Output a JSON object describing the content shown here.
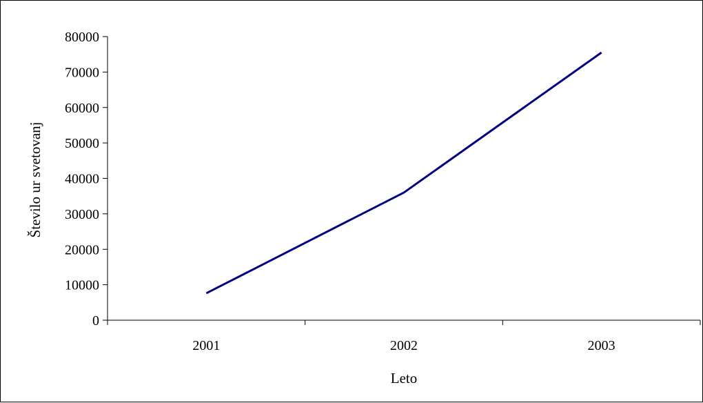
{
  "chart_data": {
    "type": "line",
    "title": "",
    "xlabel": "Leto",
    "ylabel": "Število ur svetovanj",
    "categories": [
      "2001",
      "2002",
      "2003"
    ],
    "series": [
      {
        "values": [
          7600,
          36000,
          75500
        ]
      }
    ],
    "ylim": [
      0,
      80000
    ],
    "yticks": [
      "0",
      "10000",
      "20000",
      "30000",
      "40000",
      "50000",
      "60000",
      "70000",
      "80000"
    ],
    "grid": false,
    "legend": "none",
    "line_color": "#000080"
  }
}
